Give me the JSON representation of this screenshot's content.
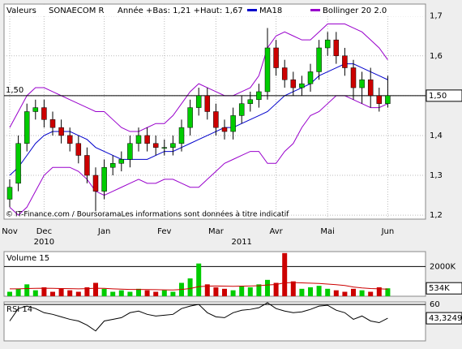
{
  "chart_data": [
    {
      "type": "candlestick",
      "header": [
        "Valeurs",
        "SONAECOM R",
        "Année +Bas: 1,21 +Haut: 1,67"
      ],
      "legend": [
        {
          "name": "MA18",
          "color": "#0000cc"
        },
        {
          "name": "Bollinger 20 2.0",
          "color": "#9900cc"
        }
      ],
      "footer": "© IT-Finance.com / BoursoramaLes informations sont données à titre indicatif",
      "categories": [
        "Nov",
        null,
        null,
        null,
        "Dec",
        null,
        null,
        null,
        null,
        null,
        null,
        "Jan",
        null,
        null,
        null,
        null,
        null,
        null,
        "Fev",
        null,
        null,
        null,
        null,
        null,
        "Mar",
        null,
        null,
        null,
        null,
        null,
        null,
        "Avr",
        null,
        null,
        null,
        null,
        null,
        "Mai",
        null,
        null,
        null,
        null,
        null,
        null,
        "Jun"
      ],
      "years": [
        null,
        null,
        null,
        null,
        "2010",
        null,
        null,
        null,
        null,
        null,
        null,
        null,
        null,
        null,
        null,
        null,
        null,
        null,
        null,
        null,
        null,
        null,
        null,
        null,
        null,
        null,
        null,
        "2011",
        null,
        null,
        null,
        null,
        null,
        null,
        null,
        null,
        null,
        null,
        null,
        null,
        null,
        null,
        null,
        null,
        null
      ],
      "open": [
        1.24,
        1.28,
        1.38,
        1.46,
        1.47,
        1.44,
        1.42,
        1.4,
        1.38,
        1.35,
        1.3,
        1.26,
        1.32,
        1.33,
        1.34,
        1.38,
        1.4,
        1.38,
        1.37,
        1.37,
        1.38,
        1.42,
        1.47,
        1.5,
        1.46,
        1.42,
        1.41,
        1.45,
        1.48,
        1.49,
        1.51,
        1.62,
        1.57,
        1.54,
        1.52,
        1.53,
        1.56,
        1.62,
        1.64,
        1.6,
        1.57,
        1.52,
        1.54,
        1.5,
        1.48
      ],
      "high": [
        1.29,
        1.4,
        1.48,
        1.49,
        1.49,
        1.46,
        1.44,
        1.42,
        1.4,
        1.37,
        1.32,
        1.34,
        1.35,
        1.36,
        1.4,
        1.42,
        1.42,
        1.4,
        1.39,
        1.4,
        1.44,
        1.49,
        1.52,
        1.52,
        1.48,
        1.44,
        1.47,
        1.5,
        1.51,
        1.53,
        1.67,
        1.64,
        1.59,
        1.56,
        1.55,
        1.58,
        1.64,
        1.66,
        1.66,
        1.62,
        1.59,
        1.56,
        1.57,
        1.52,
        1.55
      ],
      "low": [
        1.22,
        1.26,
        1.36,
        1.44,
        1.42,
        1.4,
        1.38,
        1.36,
        1.33,
        1.28,
        1.21,
        1.24,
        1.3,
        1.31,
        1.32,
        1.36,
        1.36,
        1.35,
        1.35,
        1.35,
        1.36,
        1.4,
        1.45,
        1.44,
        1.4,
        1.39,
        1.39,
        1.43,
        1.46,
        1.47,
        1.49,
        1.55,
        1.52,
        1.5,
        1.5,
        1.51,
        1.54,
        1.6,
        1.58,
        1.55,
        1.49,
        1.48,
        1.47,
        1.46,
        1.47
      ],
      "close": [
        1.27,
        1.38,
        1.46,
        1.47,
        1.44,
        1.42,
        1.4,
        1.38,
        1.35,
        1.3,
        1.26,
        1.32,
        1.33,
        1.34,
        1.38,
        1.4,
        1.38,
        1.37,
        1.37,
        1.38,
        1.42,
        1.47,
        1.5,
        1.46,
        1.42,
        1.41,
        1.45,
        1.48,
        1.49,
        1.51,
        1.62,
        1.57,
        1.54,
        1.52,
        1.53,
        1.56,
        1.62,
        1.64,
        1.6,
        1.57,
        1.52,
        1.54,
        1.5,
        1.48,
        1.5
      ],
      "up_color": "#00cc00",
      "down_color": "#cc0000",
      "series": [
        {
          "name": "MA18",
          "color": "#0000cc",
          "values": [
            1.3,
            1.32,
            1.35,
            1.38,
            1.4,
            1.41,
            1.41,
            1.41,
            1.4,
            1.39,
            1.37,
            1.36,
            1.35,
            1.34,
            1.34,
            1.34,
            1.34,
            1.35,
            1.36,
            1.36,
            1.37,
            1.38,
            1.39,
            1.4,
            1.41,
            1.42,
            1.42,
            1.43,
            1.44,
            1.45,
            1.46,
            1.48,
            1.5,
            1.51,
            1.52,
            1.53,
            1.55,
            1.56,
            1.57,
            1.58,
            1.58,
            1.57,
            1.56,
            1.55,
            1.54
          ]
        },
        {
          "name": "Bollinger 20 2.0",
          "color": "#9900cc",
          "values": [
            1.42,
            1.46,
            1.5,
            1.52,
            1.52,
            1.51,
            1.5,
            1.49,
            1.48,
            1.47,
            1.46,
            1.46,
            1.44,
            1.42,
            1.41,
            1.41,
            1.42,
            1.43,
            1.43,
            1.45,
            1.48,
            1.51,
            1.53,
            1.52,
            1.51,
            1.5,
            1.5,
            1.51,
            1.52,
            1.55,
            1.62,
            1.65,
            1.66,
            1.65,
            1.64,
            1.64,
            1.66,
            1.68,
            1.68,
            1.68,
            1.67,
            1.66,
            1.64,
            1.62,
            1.59
          ]
        },
        {
          "name": "Bollinger 20 2.0",
          "color": "#9900cc",
          "values": [
            1.22,
            1.2,
            1.22,
            1.26,
            1.3,
            1.32,
            1.32,
            1.32,
            1.31,
            1.29,
            1.26,
            1.25,
            1.26,
            1.27,
            1.28,
            1.29,
            1.28,
            1.28,
            1.29,
            1.29,
            1.28,
            1.27,
            1.27,
            1.29,
            1.31,
            1.33,
            1.34,
            1.35,
            1.36,
            1.36,
            1.33,
            1.33,
            1.36,
            1.38,
            1.42,
            1.45,
            1.46,
            1.48,
            1.5,
            1.5,
            1.49,
            1.48,
            1.47,
            1.47,
            1.48
          ]
        }
      ],
      "reference": {
        "value": 1.5,
        "label": "1,50"
      },
      "ylim": [
        1.19,
        1.73
      ],
      "yticks": [
        {
          "value": 1.2,
          "label": "1,2"
        },
        {
          "value": 1.3,
          "label": "1,3"
        },
        {
          "value": 1.4,
          "label": "1,4"
        },
        {
          "value": 1.5,
          "label": "1,5"
        },
        {
          "value": 1.6,
          "label": "1,6"
        },
        {
          "value": 1.7,
          "label": "1,7"
        }
      ],
      "grid": true
    },
    {
      "type": "bar",
      "title": "Volume 15",
      "values": [
        300000,
        500000,
        800000,
        400000,
        600000,
        300000,
        500000,
        400000,
        300000,
        600000,
        900000,
        500000,
        300000,
        400000,
        300000,
        500000,
        400000,
        300000,
        400000,
        300000,
        900000,
        1200000,
        2200000,
        800000,
        600000,
        500000,
        400000,
        700000,
        600000,
        800000,
        1100000,
        900000,
        2900000,
        1000000,
        500000,
        600000,
        700000,
        500000,
        400000,
        300000,
        500000,
        400000,
        300000,
        600000,
        534000
      ],
      "series": [
        {
          "color": "#cc0000",
          "values": [
            500000,
            500000,
            520000,
            530000,
            540000,
            530000,
            520000,
            510000,
            500000,
            510000,
            540000,
            530000,
            500000,
            480000,
            460000,
            460000,
            450000,
            440000,
            430000,
            420000,
            460000,
            520000,
            650000,
            680000,
            690000,
            680000,
            670000,
            680000,
            690000,
            710000,
            760000,
            790000,
            900000,
            920000,
            900000,
            880000,
            860000,
            820000,
            780000,
            720000,
            620000,
            560000,
            520000,
            500000,
            480000
          ]
        }
      ],
      "last": {
        "value": 534000,
        "label": "534K"
      },
      "ylim": [
        0,
        3000000
      ],
      "yticks": [
        {
          "value": 2000000,
          "label": "2000K"
        }
      ]
    },
    {
      "type": "line",
      "title": "RSI 14",
      "color": "#000000",
      "values": [
        40,
        55,
        58,
        55,
        50,
        48,
        45,
        42,
        40,
        35,
        28,
        40,
        42,
        44,
        50,
        52,
        48,
        46,
        47,
        48,
        55,
        58,
        60,
        50,
        45,
        44,
        50,
        53,
        54,
        56,
        62,
        55,
        52,
        50,
        51,
        54,
        58,
        59,
        53,
        50,
        42,
        46,
        40,
        38,
        43.3249
      ],
      "last": {
        "value": 43.3249,
        "label": "43,3249"
      },
      "ylim": [
        16,
        63
      ],
      "yticks": [
        60
      ]
    }
  ]
}
